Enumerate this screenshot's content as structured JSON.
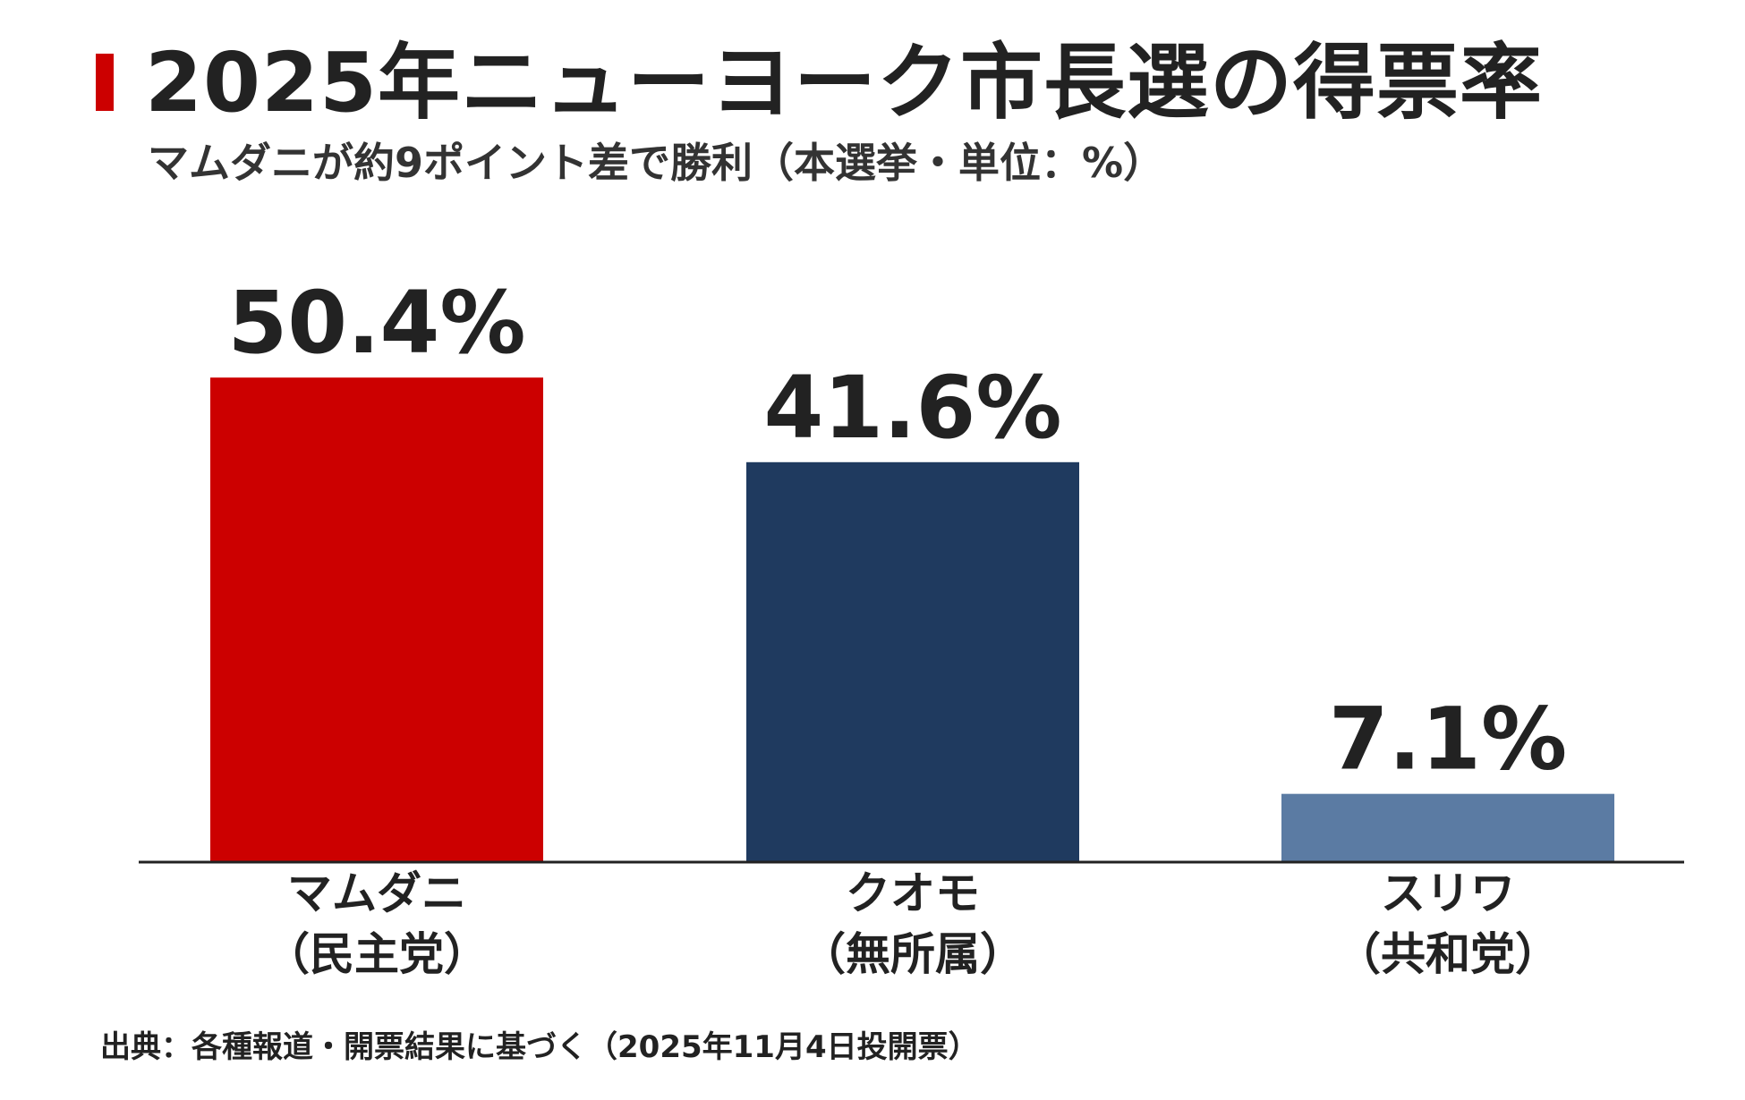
{
  "header": {
    "title": "2025年ニューヨーク市長選の得票率",
    "subtitle": "マムダニが約9ポイント差で勝利（本選挙・単位：%）",
    "accent_color": "#cc0000"
  },
  "chart_data": {
    "type": "bar",
    "title": "2025年ニューヨーク市長選の得票率",
    "subtitle": "マムダニが約9ポイント差で勝利（本選挙・単位：%）",
    "categories": [
      "マムダニ",
      "クオモ",
      "スリワ"
    ],
    "category_sublabels": [
      "（民主党）",
      "（無所属）",
      "（共和党）"
    ],
    "values": [
      50.4,
      41.6,
      7.1
    ],
    "value_labels": [
      "50.4%",
      "41.6%",
      "7.1%"
    ],
    "colors": [
      "#cc0000",
      "#1f3a5f",
      "#5b7ba3"
    ],
    "ylim": [
      0,
      55
    ],
    "grid": false,
    "legend": "none",
    "xlabel": "",
    "ylabel": ""
  },
  "footer": {
    "source": "出典：各種報道・開票結果に基づく（2025年11月4日投開票）"
  }
}
